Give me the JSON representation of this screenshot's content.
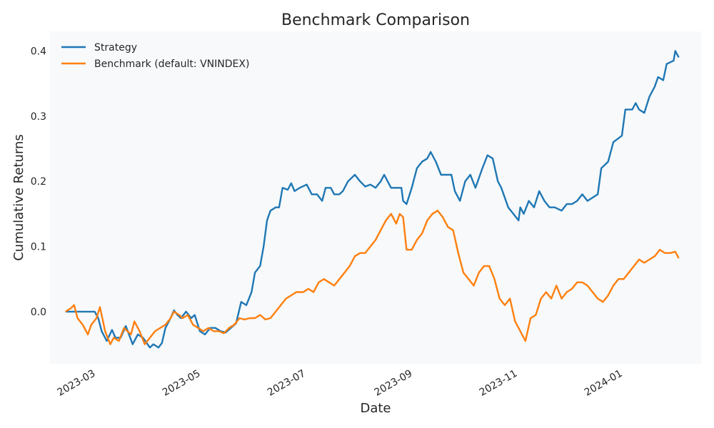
{
  "chart_data": {
    "type": "line",
    "title": "Benchmark Comparison",
    "xlabel": "Date",
    "ylabel": "Cumulative Returns",
    "xlim": [
      "2023-02-04",
      "2024-02-17"
    ],
    "ylim": [
      -0.08,
      0.43
    ],
    "x_ticks": [
      "2023-03-01",
      "2023-05-01",
      "2023-07-01",
      "2023-09-01",
      "2023-11-01",
      "2024-01-01"
    ],
    "x_tick_labels": [
      "2023-03",
      "2023-05",
      "2023-07",
      "2023-09",
      "2023-11",
      "2024-01"
    ],
    "y_ticks": [
      0.0,
      0.1,
      0.2,
      0.3,
      0.4
    ],
    "y_tick_labels": [
      "0.0",
      "0.1",
      "0.2",
      "0.3",
      "0.4"
    ],
    "grid": false,
    "legend_position": "top-left",
    "series": [
      {
        "name": "Strategy",
        "color": "#1f77b4",
        "points": [
          [
            "2023-02-13",
            0.0
          ],
          [
            "2023-02-17",
            0.0
          ],
          [
            "2023-02-21",
            0.0
          ],
          [
            "2023-02-24",
            0.0
          ],
          [
            "2023-02-27",
            0.0
          ],
          [
            "2023-03-02",
            0.0
          ],
          [
            "2023-03-04",
            -0.01
          ],
          [
            "2023-03-06",
            -0.03
          ],
          [
            "2023-03-09",
            -0.045
          ],
          [
            "2023-03-12",
            -0.028
          ],
          [
            "2023-03-14",
            -0.04
          ],
          [
            "2023-03-17",
            -0.04
          ],
          [
            "2023-03-20",
            -0.022
          ],
          [
            "2023-03-24",
            -0.05
          ],
          [
            "2023-03-27",
            -0.035
          ],
          [
            "2023-03-30",
            -0.04
          ],
          [
            "2023-04-03",
            -0.055
          ],
          [
            "2023-04-05",
            -0.05
          ],
          [
            "2023-04-08",
            -0.055
          ],
          [
            "2023-04-10",
            -0.048
          ],
          [
            "2023-04-12",
            -0.025
          ],
          [
            "2023-04-15",
            -0.01
          ],
          [
            "2023-04-17",
            0.002
          ],
          [
            "2023-04-19",
            -0.005
          ],
          [
            "2023-04-21",
            -0.01
          ],
          [
            "2023-04-24",
            0.0
          ],
          [
            "2023-04-27",
            -0.01
          ],
          [
            "2023-04-29",
            -0.005
          ],
          [
            "2023-05-02",
            -0.03
          ],
          [
            "2023-05-05",
            -0.035
          ],
          [
            "2023-05-08",
            -0.025
          ],
          [
            "2023-05-11",
            -0.025
          ],
          [
            "2023-05-14",
            -0.03
          ],
          [
            "2023-05-17",
            -0.032
          ],
          [
            "2023-05-20",
            -0.025
          ],
          [
            "2023-05-23",
            -0.018
          ],
          [
            "2023-05-26",
            0.015
          ],
          [
            "2023-05-29",
            0.01
          ],
          [
            "2023-06-01",
            0.03
          ],
          [
            "2023-06-03",
            0.06
          ],
          [
            "2023-06-06",
            0.07
          ],
          [
            "2023-06-08",
            0.1
          ],
          [
            "2023-06-10",
            0.14
          ],
          [
            "2023-06-12",
            0.155
          ],
          [
            "2023-06-15",
            0.16
          ],
          [
            "2023-06-17",
            0.16
          ],
          [
            "2023-06-19",
            0.19
          ],
          [
            "2023-06-22",
            0.187
          ],
          [
            "2023-06-24",
            0.197
          ],
          [
            "2023-06-26",
            0.185
          ],
          [
            "2023-06-29",
            0.19
          ],
          [
            "2023-07-03",
            0.195
          ],
          [
            "2023-07-06",
            0.18
          ],
          [
            "2023-07-09",
            0.18
          ],
          [
            "2023-07-12",
            0.17
          ],
          [
            "2023-07-14",
            0.19
          ],
          [
            "2023-07-17",
            0.19
          ],
          [
            "2023-07-19",
            0.18
          ],
          [
            "2023-07-22",
            0.18
          ],
          [
            "2023-07-24",
            0.185
          ],
          [
            "2023-07-27",
            0.2
          ],
          [
            "2023-07-31",
            0.21
          ],
          [
            "2023-08-03",
            0.2
          ],
          [
            "2023-08-06",
            0.192
          ],
          [
            "2023-08-09",
            0.195
          ],
          [
            "2023-08-12",
            0.19
          ],
          [
            "2023-08-15",
            0.2
          ],
          [
            "2023-08-17",
            0.21
          ],
          [
            "2023-08-21",
            0.19
          ],
          [
            "2023-08-24",
            0.19
          ],
          [
            "2023-08-27",
            0.19
          ],
          [
            "2023-08-28",
            0.17
          ],
          [
            "2023-08-30",
            0.165
          ],
          [
            "2023-09-02",
            0.19
          ],
          [
            "2023-09-05",
            0.22
          ],
          [
            "2023-09-08",
            0.23
          ],
          [
            "2023-09-11",
            0.235
          ],
          [
            "2023-09-13",
            0.245
          ],
          [
            "2023-09-16",
            0.23
          ],
          [
            "2023-09-19",
            0.21
          ],
          [
            "2023-09-22",
            0.21
          ],
          [
            "2023-09-25",
            0.21
          ],
          [
            "2023-09-27",
            0.185
          ],
          [
            "2023-09-30",
            0.17
          ],
          [
            "2023-10-03",
            0.2
          ],
          [
            "2023-10-06",
            0.21
          ],
          [
            "2023-10-09",
            0.19
          ],
          [
            "2023-10-13",
            0.22
          ],
          [
            "2023-10-16",
            0.24
          ],
          [
            "2023-10-19",
            0.235
          ],
          [
            "2023-10-22",
            0.2
          ],
          [
            "2023-10-24",
            0.19
          ],
          [
            "2023-10-28",
            0.16
          ],
          [
            "2023-10-31",
            0.15
          ],
          [
            "2023-11-03",
            0.14
          ],
          [
            "2023-11-04",
            0.16
          ],
          [
            "2023-11-06",
            0.15
          ],
          [
            "2023-11-09",
            0.17
          ],
          [
            "2023-11-12",
            0.16
          ],
          [
            "2023-11-15",
            0.185
          ],
          [
            "2023-11-18",
            0.17
          ],
          [
            "2023-11-21",
            0.16
          ],
          [
            "2023-11-24",
            0.16
          ],
          [
            "2023-11-28",
            0.155
          ],
          [
            "2023-12-01",
            0.165
          ],
          [
            "2023-12-04",
            0.165
          ],
          [
            "2023-12-07",
            0.17
          ],
          [
            "2023-12-10",
            0.18
          ],
          [
            "2023-12-13",
            0.17
          ],
          [
            "2023-12-16",
            0.175
          ],
          [
            "2023-12-19",
            0.18
          ],
          [
            "2023-12-21",
            0.22
          ],
          [
            "2023-12-25",
            0.23
          ],
          [
            "2023-12-28",
            0.26
          ],
          [
            "2024-01-02",
            0.27
          ],
          [
            "2024-01-04",
            0.31
          ],
          [
            "2024-01-08",
            0.31
          ],
          [
            "2024-01-10",
            0.32
          ],
          [
            "2024-01-12",
            0.31
          ],
          [
            "2024-01-15",
            0.305
          ],
          [
            "2024-01-18",
            0.33
          ],
          [
            "2024-01-21",
            0.345
          ],
          [
            "2024-01-23",
            0.36
          ],
          [
            "2024-01-26",
            0.355
          ],
          [
            "2024-01-28",
            0.38
          ],
          [
            "2024-02-01",
            0.385
          ],
          [
            "2024-02-02",
            0.4
          ],
          [
            "2024-02-04",
            0.39
          ]
        ]
      },
      {
        "name": "Benchmark (default: VNINDEX)",
        "color": "#ff7f0e",
        "points": [
          [
            "2023-02-13",
            0.0
          ],
          [
            "2023-02-16",
            0.005
          ],
          [
            "2023-02-18",
            0.01
          ],
          [
            "2023-02-20",
            -0.01
          ],
          [
            "2023-02-23",
            -0.02
          ],
          [
            "2023-02-26",
            -0.035
          ],
          [
            "2023-02-28",
            -0.02
          ],
          [
            "2023-03-03",
            -0.01
          ],
          [
            "2023-03-05",
            0.007
          ],
          [
            "2023-03-08",
            -0.03
          ],
          [
            "2023-03-11",
            -0.05
          ],
          [
            "2023-03-13",
            -0.04
          ],
          [
            "2023-03-16",
            -0.045
          ],
          [
            "2023-03-19",
            -0.025
          ],
          [
            "2023-03-23",
            -0.035
          ],
          [
            "2023-03-25",
            -0.015
          ],
          [
            "2023-03-28",
            -0.03
          ],
          [
            "2023-03-31",
            -0.05
          ],
          [
            "2023-04-03",
            -0.04
          ],
          [
            "2023-04-06",
            -0.03
          ],
          [
            "2023-04-09",
            -0.025
          ],
          [
            "2023-04-12",
            -0.02
          ],
          [
            "2023-04-15",
            -0.01
          ],
          [
            "2023-04-17",
            0.0
          ],
          [
            "2023-04-20",
            -0.005
          ],
          [
            "2023-04-22",
            -0.01
          ],
          [
            "2023-04-25",
            -0.005
          ],
          [
            "2023-04-28",
            -0.02
          ],
          [
            "2023-05-01",
            -0.025
          ],
          [
            "2023-05-04",
            -0.03
          ],
          [
            "2023-05-07",
            -0.025
          ],
          [
            "2023-05-10",
            -0.03
          ],
          [
            "2023-05-13",
            -0.03
          ],
          [
            "2023-05-16",
            -0.033
          ],
          [
            "2023-05-19",
            -0.025
          ],
          [
            "2023-05-22",
            -0.02
          ],
          [
            "2023-05-25",
            -0.01
          ],
          [
            "2023-05-28",
            -0.012
          ],
          [
            "2023-05-31",
            -0.01
          ],
          [
            "2023-06-03",
            -0.01
          ],
          [
            "2023-06-06",
            -0.005
          ],
          [
            "2023-06-09",
            -0.012
          ],
          [
            "2023-06-12",
            -0.01
          ],
          [
            "2023-06-15",
            0.0
          ],
          [
            "2023-06-18",
            0.01
          ],
          [
            "2023-06-21",
            0.02
          ],
          [
            "2023-06-24",
            0.025
          ],
          [
            "2023-06-27",
            0.03
          ],
          [
            "2023-07-01",
            0.03
          ],
          [
            "2023-07-04",
            0.035
          ],
          [
            "2023-07-07",
            0.03
          ],
          [
            "2023-07-10",
            0.045
          ],
          [
            "2023-07-13",
            0.05
          ],
          [
            "2023-07-16",
            0.045
          ],
          [
            "2023-07-19",
            0.04
          ],
          [
            "2023-07-22",
            0.05
          ],
          [
            "2023-07-25",
            0.06
          ],
          [
            "2023-07-28",
            0.07
          ],
          [
            "2023-07-31",
            0.085
          ],
          [
            "2023-08-03",
            0.09
          ],
          [
            "2023-08-06",
            0.09
          ],
          [
            "2023-08-09",
            0.1
          ],
          [
            "2023-08-12",
            0.11
          ],
          [
            "2023-08-15",
            0.125
          ],
          [
            "2023-08-18",
            0.14
          ],
          [
            "2023-08-21",
            0.15
          ],
          [
            "2023-08-24",
            0.135
          ],
          [
            "2023-08-26",
            0.15
          ],
          [
            "2023-08-28",
            0.145
          ],
          [
            "2023-08-30",
            0.095
          ],
          [
            "2023-09-02",
            0.095
          ],
          [
            "2023-09-05",
            0.11
          ],
          [
            "2023-09-08",
            0.12
          ],
          [
            "2023-09-11",
            0.14
          ],
          [
            "2023-09-14",
            0.15
          ],
          [
            "2023-09-17",
            0.155
          ],
          [
            "2023-09-20",
            0.145
          ],
          [
            "2023-09-23",
            0.13
          ],
          [
            "2023-09-26",
            0.125
          ],
          [
            "2023-09-29",
            0.09
          ],
          [
            "2023-10-02",
            0.06
          ],
          [
            "2023-10-05",
            0.05
          ],
          [
            "2023-10-08",
            0.04
          ],
          [
            "2023-10-11",
            0.06
          ],
          [
            "2023-10-14",
            0.07
          ],
          [
            "2023-10-17",
            0.07
          ],
          [
            "2023-10-20",
            0.05
          ],
          [
            "2023-10-23",
            0.02
          ],
          [
            "2023-10-26",
            0.01
          ],
          [
            "2023-10-29",
            0.02
          ],
          [
            "2023-11-01",
            -0.015
          ],
          [
            "2023-11-04",
            -0.03
          ],
          [
            "2023-11-07",
            -0.045
          ],
          [
            "2023-11-10",
            -0.01
          ],
          [
            "2023-11-13",
            -0.005
          ],
          [
            "2023-11-16",
            0.02
          ],
          [
            "2023-11-19",
            0.03
          ],
          [
            "2023-11-22",
            0.02
          ],
          [
            "2023-11-25",
            0.04
          ],
          [
            "2023-11-28",
            0.02
          ],
          [
            "2023-12-01",
            0.03
          ],
          [
            "2023-12-04",
            0.035
          ],
          [
            "2023-12-07",
            0.045
          ],
          [
            "2023-12-10",
            0.045
          ],
          [
            "2023-12-13",
            0.04
          ],
          [
            "2023-12-16",
            0.03
          ],
          [
            "2023-12-19",
            0.02
          ],
          [
            "2023-12-22",
            0.015
          ],
          [
            "2023-12-25",
            0.025
          ],
          [
            "2023-12-28",
            0.04
          ],
          [
            "2023-12-31",
            0.05
          ],
          [
            "2024-01-03",
            0.05
          ],
          [
            "2024-01-06",
            0.06
          ],
          [
            "2024-01-09",
            0.07
          ],
          [
            "2024-01-12",
            0.08
          ],
          [
            "2024-01-15",
            0.075
          ],
          [
            "2024-01-18",
            0.08
          ],
          [
            "2024-01-21",
            0.085
          ],
          [
            "2024-01-24",
            0.095
          ],
          [
            "2024-01-27",
            0.09
          ],
          [
            "2024-01-30",
            0.09
          ],
          [
            "2024-02-02",
            0.092
          ],
          [
            "2024-02-04",
            0.082
          ]
        ]
      }
    ]
  }
}
